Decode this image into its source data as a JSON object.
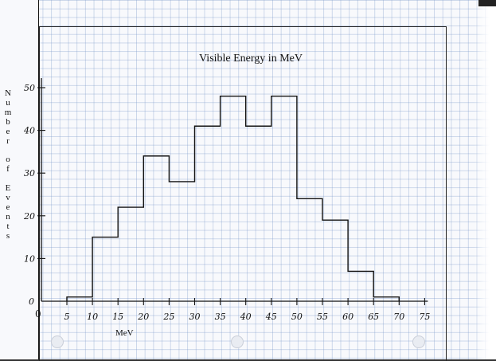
{
  "chart_data": {
    "type": "bar",
    "style": "step-histogram",
    "title": "Visible Energy in MeV",
    "xlabel": "MeV",
    "ylabel": "Number of Events",
    "bin_edges": [
      5,
      10,
      15,
      20,
      25,
      30,
      35,
      40,
      45,
      50,
      55,
      60,
      65,
      70
    ],
    "values": [
      1,
      15,
      22,
      34,
      28,
      41,
      48,
      41,
      48,
      24,
      19,
      7,
      1
    ],
    "x_ticks": [
      "0",
      "5",
      "10",
      "15",
      "20",
      "25",
      "30",
      "35",
      "40",
      "45",
      "50",
      "55",
      "60",
      "65",
      "70",
      "75"
    ],
    "y_ticks": [
      "0",
      "10",
      "20",
      "30",
      "40",
      "50"
    ],
    "xlim": [
      0,
      75
    ],
    "ylim": [
      0,
      50
    ],
    "grid": true
  },
  "colors": {
    "ink": "#111111",
    "grid": "#9fb3d6",
    "paper": "#f8f9fc"
  }
}
